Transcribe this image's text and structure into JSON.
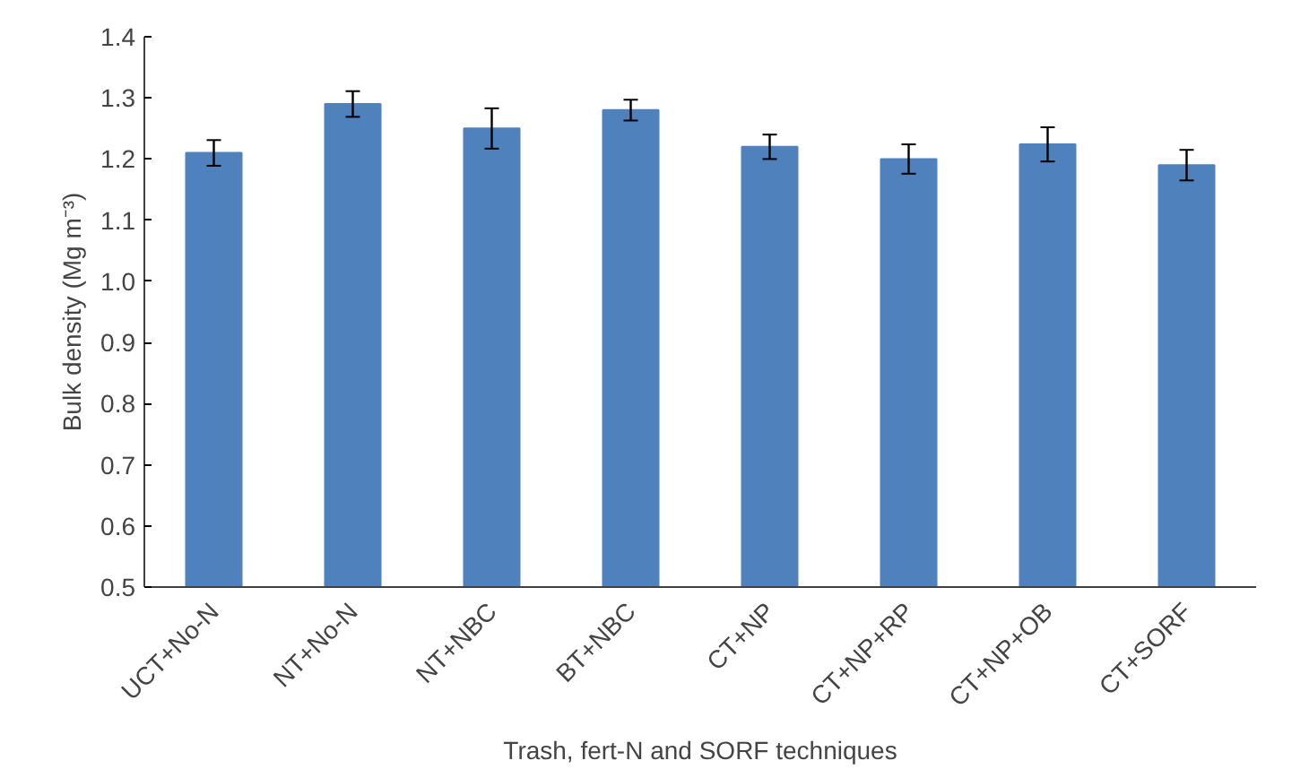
{
  "chart_data": {
    "type": "bar",
    "xlabel": "Trash, fert-N and SORF techniques",
    "ylabel": "Bulk density (Mg m⁻³)",
    "categories": [
      "UCT+No-N",
      "NT+No-N",
      "NT+NBC",
      "BT+NBC",
      "CT+NP",
      "CT+NP+RP",
      "CT+NP+OB",
      "CT+SORF"
    ],
    "values": [
      1.21,
      1.29,
      1.25,
      1.28,
      1.22,
      1.2,
      1.224,
      1.19
    ],
    "errors": [
      0.021,
      0.021,
      0.033,
      0.017,
      0.02,
      0.024,
      0.028,
      0.025
    ],
    "color": "#4f81bd",
    "ylim": [
      0.5,
      1.4
    ],
    "yticks": [
      {
        "value": 0.5,
        "label": "0.5"
      },
      {
        "value": 0.6,
        "label": "0.6"
      },
      {
        "value": 0.7,
        "label": "0.7"
      },
      {
        "value": 0.8,
        "label": "0.8"
      },
      {
        "value": 0.9,
        "label": "0.9"
      },
      {
        "value": 1.0,
        "label": "1.0"
      },
      {
        "value": 1.1,
        "label": "1.1"
      },
      {
        "value": 1.2,
        "label": "1.2"
      },
      {
        "value": 1.3,
        "label": "1.3"
      },
      {
        "value": 1.4,
        "label": "1.4"
      }
    ],
    "grid": false
  }
}
